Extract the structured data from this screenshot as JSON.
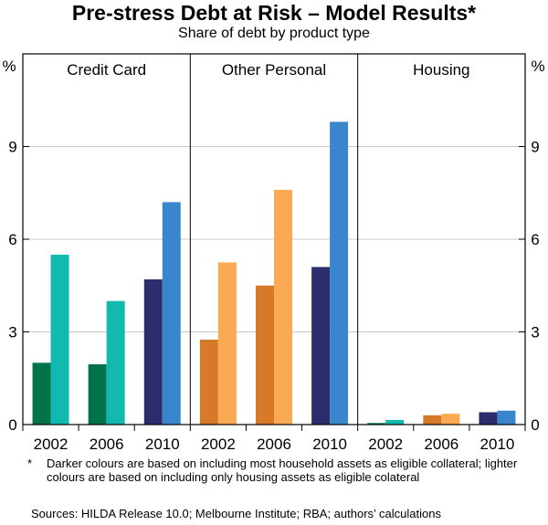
{
  "colors": {
    "credit_dark": "#00734a",
    "credit_light": "#12b9b0",
    "other_dark": "#d67a2a",
    "other_light": "#f9aa52",
    "housing_2002_dark": "#00734a",
    "housing_2002_light": "#12b9b0",
    "housing_2006_dark": "#d67a2a",
    "housing_2006_light": "#f9aa52",
    "y2010_dark": "#2b2d6c",
    "y2010_light": "#3a86cc"
  },
  "chart_data": {
    "type": "bar",
    "title": "Pre-stress Debt at Risk – Model Results*",
    "subtitle": "Share of debt by product type",
    "ylabel": "%",
    "ylim": [
      0,
      12
    ],
    "yticks": [
      0,
      3,
      6,
      9
    ],
    "ytick_labels": [
      "0",
      "3",
      "6",
      "9"
    ],
    "categories": [
      "2002",
      "2006",
      "2010"
    ],
    "panels": [
      {
        "name": "Credit Card",
        "bars": [
          {
            "year": "2002",
            "dark": 2.0,
            "light": 5.5
          },
          {
            "year": "2006",
            "dark": 1.95,
            "light": 4.0
          },
          {
            "year": "2010",
            "dark": 4.7,
            "light": 7.2
          }
        ]
      },
      {
        "name": "Other Personal",
        "bars": [
          {
            "year": "2002",
            "dark": 2.75,
            "light": 5.25
          },
          {
            "year": "2006",
            "dark": 4.5,
            "light": 7.6
          },
          {
            "year": "2010",
            "dark": 5.1,
            "light": 9.8
          }
        ]
      },
      {
        "name": "Housing",
        "bars": [
          {
            "year": "2002",
            "dark": 0.05,
            "light": 0.15
          },
          {
            "year": "2006",
            "dark": 0.3,
            "light": 0.35
          },
          {
            "year": "2010",
            "dark": 0.4,
            "light": 0.45
          }
        ]
      }
    ]
  },
  "notes": {
    "footnote_marker": "*",
    "footnote": "Darker colours are based on including most household assets as eligible collateral; lighter colours are based on including only housing assets as eligible colateral",
    "sources": "Sources: HILDA Release 10.0; Melbourne Institute; RBA; authors’ calculations"
  }
}
